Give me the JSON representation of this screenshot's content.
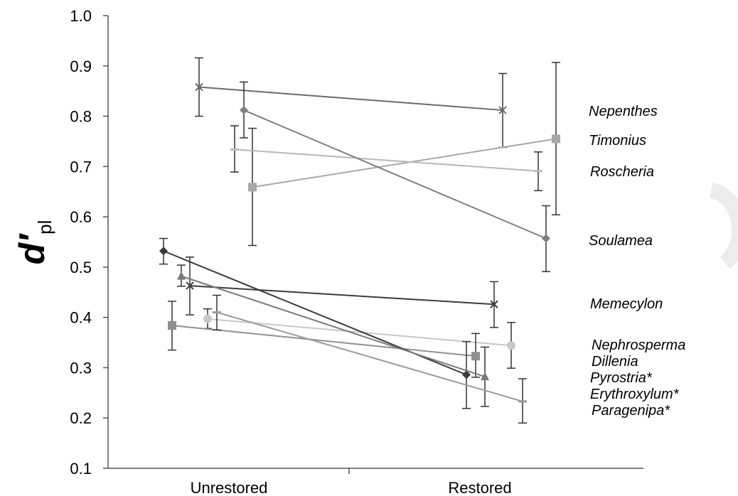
{
  "chart_data": {
    "type": "line",
    "categories": [
      "Unrestored",
      "Restored"
    ],
    "ylabel": {
      "main": "d′",
      "sub": "pl"
    },
    "ylim": [
      0.1,
      1.0
    ],
    "yticks": [
      "0.1",
      "0.2",
      "0.3",
      "0.4",
      "0.5",
      "0.6",
      "0.7",
      "0.8",
      "0.9",
      "1.0"
    ],
    "grid": false,
    "series": [
      {
        "name": "Nepenthes",
        "marker": "x",
        "color": "#6b6b6b",
        "values": [
          0.858,
          0.812
        ],
        "err_low": [
          0.8,
          0.738
        ],
        "err_high": [
          0.916,
          0.885
        ]
      },
      {
        "name": "Timonius",
        "marker": "square",
        "color": "#a8a8a8",
        "values": [
          0.659,
          0.755
        ],
        "err_low": [
          0.543,
          0.604
        ],
        "err_high": [
          0.776,
          0.907
        ]
      },
      {
        "name": "Roscheria",
        "marker": "dash",
        "color": "#b8b8b8",
        "values": [
          0.734,
          0.691
        ],
        "err_low": [
          0.689,
          0.652
        ],
        "err_high": [
          0.781,
          0.729
        ]
      },
      {
        "name": "Soulamea",
        "marker": "diamond",
        "color": "#808080",
        "values": [
          0.812,
          0.557
        ],
        "err_low": [
          0.757,
          0.491
        ],
        "err_high": [
          0.868,
          0.622
        ]
      },
      {
        "name": "Memecylon",
        "marker": "x",
        "color": "#3c3c3c",
        "values": [
          0.463,
          0.426
        ],
        "err_low": [
          0.405,
          0.38
        ],
        "err_high": [
          0.52,
          0.471
        ]
      },
      {
        "name": "Nephrosperma",
        "marker": "circle",
        "color": "#c8c8c8",
        "values": [
          0.397,
          0.344
        ],
        "err_low": [
          0.378,
          0.299
        ],
        "err_high": [
          0.417,
          0.39
        ]
      },
      {
        "name": "Dillenia",
        "marker": "square",
        "color": "#909090",
        "values": [
          0.384,
          0.323
        ],
        "err_low": [
          0.335,
          0.281
        ],
        "err_high": [
          0.432,
          0.368
        ]
      },
      {
        "name": "Pyrostria*",
        "marker": "diamond",
        "color": "#3a3a3a",
        "values": [
          0.532,
          0.286
        ],
        "err_low": [
          0.506,
          0.219
        ],
        "err_high": [
          0.557,
          0.352
        ]
      },
      {
        "name": "Erythroxylum*",
        "marker": "triangle",
        "color": "#7a7a7a",
        "values": [
          0.482,
          0.282
        ],
        "err_low": [
          0.462,
          0.223
        ],
        "err_high": [
          0.504,
          0.341
        ]
      },
      {
        "name": "Paragenipa*",
        "marker": "dash",
        "color": "#9a9a9a",
        "values": [
          0.41,
          0.233
        ],
        "err_low": [
          0.375,
          0.19
        ],
        "err_high": [
          0.444,
          0.278
        ]
      }
    ]
  }
}
